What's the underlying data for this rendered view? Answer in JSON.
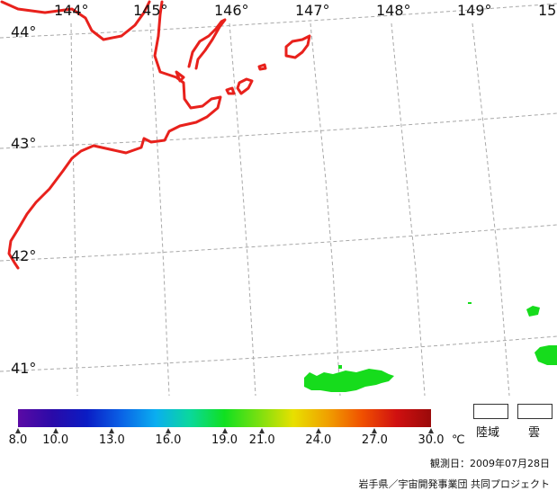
{
  "map": {
    "longitude_labels": [
      "144°",
      "145°",
      "146°",
      "147°",
      "148°",
      "149°",
      "15"
    ],
    "latitude_labels": [
      "44°",
      "43°",
      "42°",
      "41°"
    ],
    "coastline_color": "#e8211c",
    "sst_patch_color": "#16dc1c",
    "grid_style": "dashed-gray"
  },
  "colorbar": {
    "min": 8.0,
    "max": 30.0,
    "tick_labels": [
      "8.0",
      "10.0",
      "13.0",
      "16.0",
      "19.0",
      "21.0",
      "24.0",
      "27.0",
      "30.0"
    ],
    "ticks": [
      8.0,
      10.0,
      13.0,
      16.0,
      19.0,
      21.0,
      24.0,
      27.0,
      30.0
    ],
    "unit": "℃",
    "colors": [
      "#5b0aa5",
      "#2a0aa8",
      "#0a1cc4",
      "#0a62e6",
      "#0aaef0",
      "#0ad89c",
      "#10e020",
      "#7ae010",
      "#e8e000",
      "#f0a000",
      "#f05000",
      "#d01010",
      "#9a0a0a"
    ]
  },
  "legend": {
    "land_label": "陸域",
    "cloud_label": "雲"
  },
  "footer": {
    "observation_date": "観測日：2009年07月28日",
    "credit": "岩手県／宇宙開発事業団 共同プロジェクト"
  }
}
